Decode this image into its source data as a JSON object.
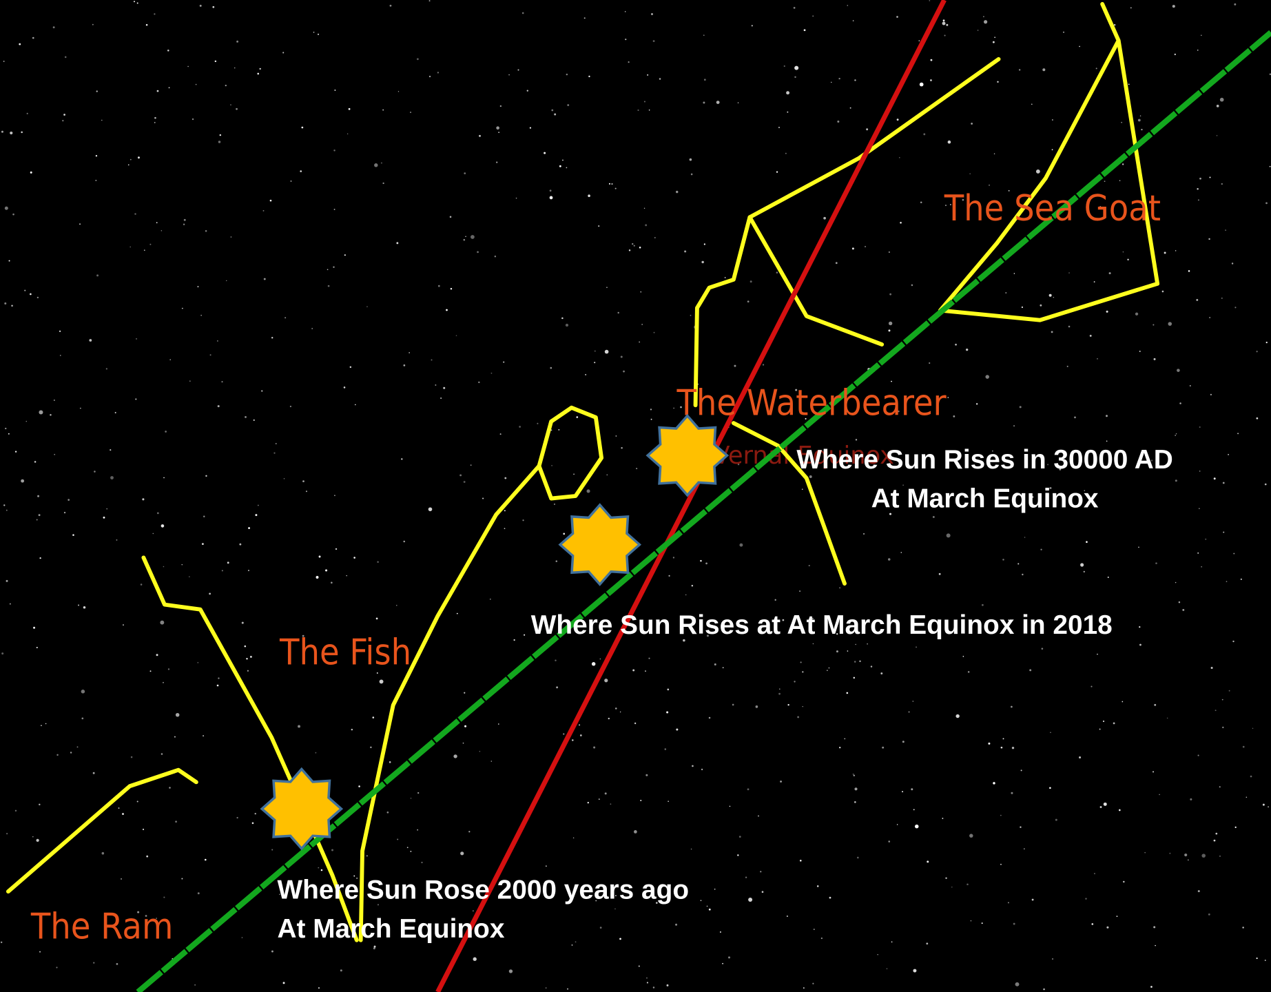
{
  "constellations": [
    "The Sea Goat",
    "The Waterbearer",
    "The Fish",
    "The Ram"
  ],
  "equinox_label": "Vernal Equinox",
  "annotations": [
    {
      "lines": [
        "Where Sun Rises in 30000 AD",
        "At March Equinox"
      ]
    },
    {
      "lines": [
        "Where Sun Rises at At March Equinox in 2018"
      ]
    },
    {
      "lines": [
        "Where Sun Rose 2000 years ago",
        "At March Equinox"
      ]
    }
  ]
}
